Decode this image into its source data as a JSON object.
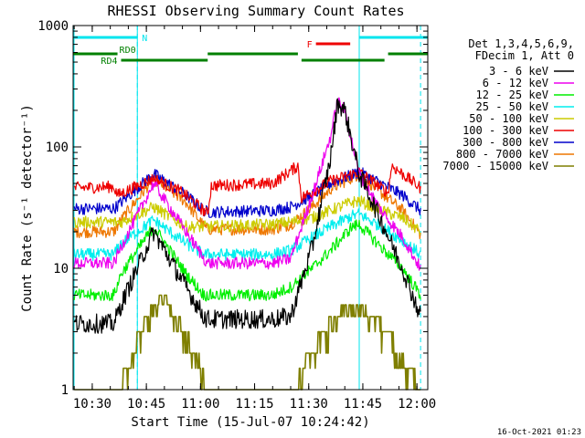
{
  "chart_data": {
    "type": "line",
    "title": "RHESSI Observing Summary Count Rates",
    "xlabel": "Start Time (15-Jul-07 10:24:42)",
    "ylabel": "Count Rate (s⁻¹ detector⁻¹)",
    "yscale": "log",
    "ylim": [
      1,
      1000
    ],
    "xlim": [
      "10:24:42",
      "12:03:00"
    ],
    "x_ticks": [
      "10:30",
      "10:45",
      "11:00",
      "11:15",
      "11:30",
      "11:45",
      "12:00"
    ],
    "y_ticks": [
      "1",
      "10",
      "100",
      "1000"
    ],
    "legend_title": [
      "Det 1,3,4,5,6,9,",
      "FDecim 1, Att 0"
    ],
    "legend_position": "right",
    "footer_date": "16-Oct-2021 01:23",
    "flags": [
      {
        "label": "N",
        "color": "#00e5ee",
        "segments": [
          [
            "10:24:42",
            "10:42:30"
          ],
          [
            "11:44:00",
            "12:03:00"
          ]
        ]
      },
      {
        "label": "F",
        "color": "#ee0000",
        "segments": [
          [
            "11:32:00",
            "11:41:30"
          ]
        ]
      },
      {
        "label": "RD0",
        "color": "#008000",
        "segments": [
          [
            "10:24:42",
            "10:37:00"
          ],
          [
            "11:02:00",
            "11:27:00"
          ],
          [
            "11:52:00",
            "12:03:00"
          ]
        ]
      },
      {
        "label": "RD4",
        "color": "#008000",
        "segments": [
          [
            "10:38:00",
            "11:02:00"
          ],
          [
            "11:28:00",
            "11:51:00"
          ]
        ]
      }
    ],
    "vlines_solid": [
      "10:42:30",
      "11:44:00"
    ],
    "vlines_dashed": [
      "10:42:30",
      "12:01:00"
    ],
    "series": [
      {
        "name": "3 - 6 keV",
        "color": "#000000",
        "times": [
          "10:25",
          "10:36",
          "10:38",
          "10:47",
          "10:56",
          "11:01",
          "11:02",
          "11:20",
          "11:25",
          "11:31",
          "11:36",
          "11:38",
          "11:40",
          "11:44",
          "11:50",
          "11:56",
          "12:01"
        ],
        "values": [
          3.5,
          3.5,
          5.0,
          20.0,
          7.0,
          4.0,
          3.8,
          3.8,
          4.0,
          15.0,
          80.0,
          230.0,
          200.0,
          60.0,
          25.0,
          10.0,
          4.0
        ]
      },
      {
        "name": "6 - 12 keV",
        "color": "#ee00ee",
        "times": [
          "10:25",
          "10:36",
          "10:38",
          "10:47",
          "10:56",
          "11:01",
          "11:02",
          "11:20",
          "11:25",
          "11:31",
          "11:36",
          "11:38",
          "11:40",
          "11:44",
          "11:50",
          "11:56",
          "12:01"
        ],
        "values": [
          11.0,
          11.0,
          15.0,
          50.0,
          20.0,
          12.0,
          11.0,
          11.0,
          12.0,
          40.0,
          120.0,
          240.0,
          200.0,
          60.0,
          30.0,
          18.0,
          10.0
        ]
      },
      {
        "name": "12 - 25 keV",
        "color": "#00ee00",
        "times": [
          "10:25",
          "10:36",
          "10:38",
          "10:47",
          "10:56",
          "11:01",
          "11:02",
          "11:20",
          "11:25",
          "11:31",
          "11:36",
          "11:42",
          "11:44",
          "11:50",
          "11:56",
          "12:01"
        ],
        "values": [
          6.0,
          6.0,
          9.0,
          22.0,
          9.0,
          6.0,
          6.0,
          6.0,
          7.0,
          10.0,
          14.0,
          22.0,
          23.0,
          15.0,
          10.0,
          6.0
        ]
      },
      {
        "name": "25 - 50 keV",
        "color": "#00eeee",
        "times": [
          "10:25",
          "10:36",
          "10:38",
          "10:47",
          "10:56",
          "11:01",
          "11:02",
          "11:20",
          "11:25",
          "11:31",
          "11:36",
          "11:42",
          "11:44",
          "11:50",
          "11:56",
          "12:01"
        ],
        "values": [
          13.0,
          13.0,
          16.0,
          25.0,
          16.0,
          13.0,
          13.0,
          13.0,
          14.0,
          18.0,
          22.0,
          27.0,
          28.0,
          22.0,
          17.0,
          13.0
        ]
      },
      {
        "name": "50 - 100 keV",
        "color": "#cccc00",
        "times": [
          "10:25",
          "10:36",
          "10:38",
          "10:47",
          "10:56",
          "11:01",
          "11:02",
          "11:20",
          "11:25",
          "11:31",
          "11:36",
          "11:42",
          "11:44",
          "11:50",
          "11:56",
          "12:01"
        ],
        "values": [
          24.0,
          24.0,
          24.0,
          32.0,
          22.0,
          22.0,
          22.0,
          23.0,
          24.0,
          26.0,
          30.0,
          35.0,
          36.0,
          30.0,
          26.0,
          20.0
        ]
      },
      {
        "name": "100 - 300 keV",
        "color": "#ee0000",
        "times": [
          "10:25",
          "10:36",
          "10:37",
          "10:47",
          "10:55",
          "11:02",
          "11:03",
          "11:20",
          "11:27",
          "11:28",
          "11:36",
          "11:44",
          "11:52",
          "11:53",
          "12:01"
        ],
        "values": [
          46.0,
          47.0,
          40.0,
          55.0,
          42.0,
          28.0,
          48.0,
          50.0,
          70.0,
          38.0,
          52.0,
          62.0,
          42.0,
          70.0,
          46.0
        ]
      },
      {
        "name": "300 - 800 keV",
        "color": "#0000cc",
        "times": [
          "10:25",
          "10:36",
          "10:38",
          "10:47",
          "10:56",
          "11:01",
          "11:02",
          "11:20",
          "11:25",
          "11:31",
          "11:36",
          "11:44",
          "11:50",
          "11:56",
          "12:01"
        ],
        "values": [
          31.0,
          31.0,
          35.0,
          60.0,
          40.0,
          30.0,
          29.0,
          30.0,
          32.0,
          40.0,
          50.0,
          62.0,
          50.0,
          40.0,
          30.0
        ]
      },
      {
        "name": "800 - 7000 keV",
        "color": "#ee7700",
        "times": [
          "10:25",
          "10:36",
          "10:38",
          "10:47",
          "10:56",
          "11:01",
          "11:02",
          "11:20",
          "11:25",
          "11:31",
          "11:36",
          "11:44",
          "11:50",
          "11:56",
          "12:01"
        ],
        "values": [
          20.0,
          20.0,
          25.0,
          55.0,
          35.0,
          22.0,
          21.0,
          21.0,
          23.0,
          32.0,
          45.0,
          60.0,
          42.0,
          30.0,
          19.0
        ]
      },
      {
        "name": "7000 - 15000 keV",
        "color": "#7f7f00",
        "times": [
          "10:25",
          "10:37",
          "10:40",
          "10:43",
          "10:47",
          "10:50",
          "10:53",
          "10:56",
          "10:59",
          "11:02",
          "11:20",
          "11:26",
          "11:30",
          "11:34",
          "11:38",
          "11:44",
          "11:48",
          "11:52",
          "11:55",
          "11:58",
          "12:01"
        ],
        "values": [
          1.0,
          1.0,
          1.5,
          3.0,
          5.0,
          6.0,
          4.0,
          3.0,
          2.0,
          1.0,
          1.0,
          1.0,
          2.0,
          3.0,
          4.5,
          5.0,
          4.0,
          3.0,
          2.0,
          1.5,
          1.0
        ]
      }
    ]
  }
}
